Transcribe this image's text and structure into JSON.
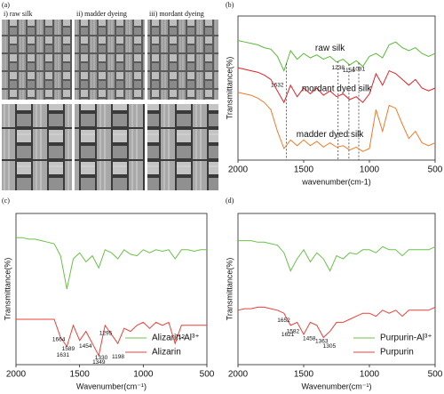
{
  "panel_a": {
    "label": "(a)",
    "captions": [
      "i) raw silk",
      "ii) madder dyeing",
      "iii) mordant dyeing"
    ]
  },
  "chart_data": [
    {
      "type": "line",
      "label": "(b)",
      "ylabel": "Transmittance(%)",
      "xlabel": "wavenumber(cm-1)",
      "x": [
        2000,
        1950,
        1900,
        1850,
        1800,
        1750,
        1700,
        1650,
        1600,
        1550,
        1500,
        1450,
        1400,
        1350,
        1300,
        1250,
        1200,
        1150,
        1100,
        1050,
        1000,
        950,
        900,
        850,
        800,
        750,
        700,
        650,
        600,
        550,
        500
      ],
      "xlim": [
        2000,
        500
      ],
      "xticks": [
        2000,
        1500,
        1000,
        500
      ],
      "ylim": [
        0,
        100
      ],
      "legend": "on-line",
      "peak_lines": true,
      "series": [
        {
          "name": "raw silk",
          "color": "#5cb83a",
          "peaks": [
            1632,
            1238,
            1156,
            1081
          ],
          "values": [
            83,
            82,
            81,
            80,
            78,
            77,
            72,
            62,
            76,
            70,
            74,
            71,
            73,
            70,
            72,
            68,
            70,
            66,
            69,
            65,
            72,
            74,
            71,
            80,
            82,
            78,
            76,
            78,
            74,
            72,
            74
          ]
        },
        {
          "name": "mordant dyed silk",
          "color": "#e0202a",
          "values": [
            64,
            63,
            62,
            61,
            59,
            56,
            48,
            40,
            52,
            44,
            50,
            46,
            50,
            45,
            48,
            44,
            46,
            42,
            44,
            40,
            46,
            60,
            52,
            62,
            60,
            56,
            52,
            56,
            50,
            48,
            50
          ]
        },
        {
          "name": "madder dyed silk",
          "color": "#f07a2a",
          "values": [
            47,
            46,
            45,
            43,
            40,
            35,
            20,
            8,
            14,
            10,
            14,
            10,
            13,
            9,
            12,
            9,
            10,
            7,
            9,
            6,
            8,
            35,
            20,
            38,
            36,
            25,
            15,
            20,
            12,
            10,
            12
          ]
        }
      ]
    },
    {
      "type": "line",
      "label": "(c)",
      "ylabel": "Transmittance(%)",
      "xlabel": "Wavenumber(cm⁻¹)",
      "x": [
        2000,
        1950,
        1900,
        1850,
        1800,
        1750,
        1700,
        1650,
        1600,
        1550,
        1500,
        1450,
        1400,
        1350,
        1300,
        1250,
        1200,
        1150,
        1100,
        1050,
        1000,
        950,
        900,
        850,
        800,
        750,
        700,
        650,
        600,
        550,
        500
      ],
      "xlim": [
        2000,
        500
      ],
      "xticks": [
        2000,
        1500,
        1000,
        500
      ],
      "ylim": [
        0,
        100
      ],
      "legend": "lower right",
      "peak_lines": false,
      "series": [
        {
          "name": "Alizarin-Al³⁺",
          "color": "#6cc04a",
          "values": [
            84,
            84,
            83,
            83,
            82,
            81,
            80,
            72,
            50,
            70,
            74,
            68,
            72,
            64,
            76,
            74,
            70,
            76,
            73,
            72,
            76,
            74,
            76,
            75,
            76,
            70,
            76,
            76,
            75,
            76,
            76
          ]
        },
        {
          "name": "Alizarin",
          "color": "#e8403a",
          "peaks": [
            1664,
            1631,
            1589,
            1454,
            1349,
            1330,
            1295,
            1198,
            712
          ],
          "values": [
            30,
            30,
            30,
            30,
            30,
            30,
            30,
            18,
            12,
            26,
            16,
            22,
            14,
            6,
            26,
            20,
            14,
            24,
            22,
            26,
            28,
            24,
            28,
            26,
            28,
            14,
            26,
            26,
            26,
            26,
            26
          ]
        }
      ]
    },
    {
      "type": "line",
      "label": "(d)",
      "ylabel": "Transmittance(%)",
      "xlabel": "Wavenumber(cm⁻¹)",
      "x": [
        2000,
        1950,
        1900,
        1850,
        1800,
        1750,
        1700,
        1650,
        1600,
        1550,
        1500,
        1450,
        1400,
        1350,
        1300,
        1250,
        1200,
        1150,
        1100,
        1050,
        1000,
        950,
        900,
        850,
        800,
        750,
        700,
        650,
        600,
        550,
        500
      ],
      "xlim": [
        2000,
        500
      ],
      "xticks": [
        2000,
        1500,
        1000,
        500
      ],
      "ylim": [
        0,
        100
      ],
      "legend": "lower right",
      "peak_lines": false,
      "series": [
        {
          "name": "Purpurin-Al³⁺",
          "color": "#6cc04a",
          "values": [
            82,
            82,
            82,
            81,
            81,
            80,
            79,
            74,
            62,
            70,
            76,
            68,
            74,
            70,
            62,
            72,
            70,
            74,
            73,
            76,
            76,
            74,
            78,
            76,
            76,
            72,
            76,
            76,
            76,
            76,
            78
          ]
        },
        {
          "name": "Purpurin",
          "color": "#e8403a",
          "peaks": [
            1652,
            1621,
            1582,
            1458,
            1363,
            1305
          ],
          "values": [
            36,
            37,
            37,
            38,
            38,
            37,
            36,
            34,
            26,
            28,
            20,
            28,
            26,
            18,
            22,
            28,
            28,
            30,
            32,
            34,
            34,
            32,
            36,
            34,
            36,
            32,
            36,
            36,
            36,
            36,
            38
          ]
        }
      ]
    }
  ]
}
